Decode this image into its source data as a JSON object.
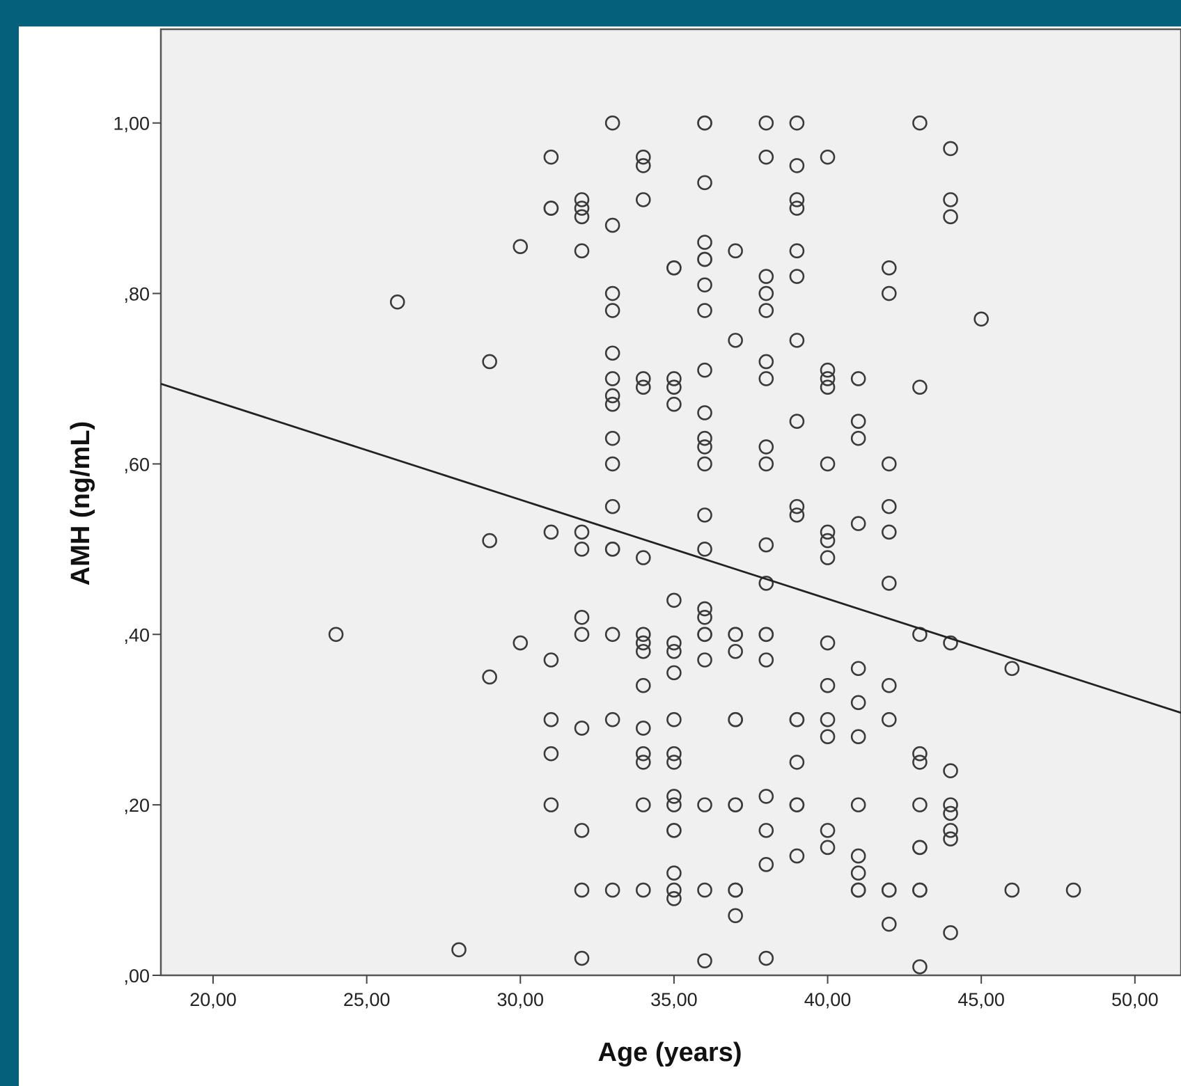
{
  "chart_data": {
    "type": "scatter",
    "title": "",
    "xlabel": "Age (years)",
    "ylabel": "AMH (ng/mL)",
    "xlim": [
      18.3,
      51.5
    ],
    "ylim": [
      0,
      1.11
    ],
    "x_ticks": [
      {
        "value": 20,
        "label": "20,00"
      },
      {
        "value": 25,
        "label": "25,00"
      },
      {
        "value": 30,
        "label": "30,00"
      },
      {
        "value": 35,
        "label": "35,00"
      },
      {
        "value": 40,
        "label": "40,00"
      },
      {
        "value": 45,
        "label": "45,00"
      },
      {
        "value": 50,
        "label": "50,00"
      }
    ],
    "y_ticks": [
      {
        "value": 0,
        "label": ",00"
      },
      {
        "value": 0.2,
        "label": ",20"
      },
      {
        "value": 0.4,
        "label": ",40"
      },
      {
        "value": 0.6,
        "label": ",60"
      },
      {
        "value": 0.8,
        "label": ",80"
      },
      {
        "value": 1.0,
        "label": "1,00"
      }
    ],
    "grid": false,
    "background_color": "#f0f0f0",
    "marker": "open-circle",
    "fit_line": {
      "type": "linear",
      "x": [
        18.3,
        51.5
      ],
      "y": [
        0.694,
        0.308
      ]
    },
    "points": [
      [
        24,
        0.4
      ],
      [
        26,
        0.79
      ],
      [
        28,
        0.03
      ],
      [
        29,
        0.72
      ],
      [
        29,
        0.51
      ],
      [
        29,
        0.35
      ],
      [
        30,
        0.855
      ],
      [
        30,
        0.39
      ],
      [
        31,
        0.96
      ],
      [
        31,
        0.9
      ],
      [
        31,
        0.9
      ],
      [
        31,
        0.52
      ],
      [
        31,
        0.37
      ],
      [
        31,
        0.3
      ],
      [
        31,
        0.26
      ],
      [
        31,
        0.2
      ],
      [
        32,
        0.91
      ],
      [
        32,
        0.9
      ],
      [
        32,
        0.89
      ],
      [
        32,
        0.85
      ],
      [
        32,
        0.52
      ],
      [
        32,
        0.5
      ],
      [
        32,
        0.42
      ],
      [
        32,
        0.4
      ],
      [
        32,
        0.29
      ],
      [
        32,
        0.17
      ],
      [
        32,
        0.1
      ],
      [
        32,
        0.02
      ],
      [
        33,
        1.0
      ],
      [
        33,
        0.88
      ],
      [
        33,
        0.8
      ],
      [
        33,
        0.78
      ],
      [
        33,
        0.73
      ],
      [
        33,
        0.7
      ],
      [
        33,
        0.68
      ],
      [
        33,
        0.67
      ],
      [
        33,
        0.63
      ],
      [
        33,
        0.6
      ],
      [
        33,
        0.55
      ],
      [
        33,
        0.5
      ],
      [
        33,
        0.5
      ],
      [
        33,
        0.4
      ],
      [
        33,
        0.3
      ],
      [
        33,
        0.1
      ],
      [
        34,
        0.96
      ],
      [
        34,
        0.95
      ],
      [
        34,
        0.91
      ],
      [
        34,
        0.7
      ],
      [
        34,
        0.69
      ],
      [
        34,
        0.49
      ],
      [
        34,
        0.4
      ],
      [
        34,
        0.39
      ],
      [
        34,
        0.38
      ],
      [
        34,
        0.34
      ],
      [
        34,
        0.29
      ],
      [
        34,
        0.26
      ],
      [
        34,
        0.25
      ],
      [
        34,
        0.2
      ],
      [
        34,
        0.1
      ],
      [
        35,
        0.83
      ],
      [
        35,
        0.83
      ],
      [
        35,
        0.7
      ],
      [
        35,
        0.69
      ],
      [
        35,
        0.67
      ],
      [
        35,
        0.44
      ],
      [
        35,
        0.39
      ],
      [
        35,
        0.38
      ],
      [
        35,
        0.355
      ],
      [
        35,
        0.3
      ],
      [
        35,
        0.26
      ],
      [
        35,
        0.25
      ],
      [
        35,
        0.21
      ],
      [
        35,
        0.2
      ],
      [
        35,
        0.17
      ],
      [
        35,
        0.17
      ],
      [
        35,
        0.12
      ],
      [
        35,
        0.1
      ],
      [
        35,
        0.09
      ],
      [
        36,
        1.0
      ],
      [
        36,
        1.0
      ],
      [
        36,
        0.93
      ],
      [
        36,
        0.86
      ],
      [
        36,
        0.84
      ],
      [
        36,
        0.84
      ],
      [
        36,
        0.81
      ],
      [
        36,
        0.78
      ],
      [
        36,
        0.71
      ],
      [
        36,
        0.66
      ],
      [
        36,
        0.63
      ],
      [
        36,
        0.62
      ],
      [
        36,
        0.6
      ],
      [
        36,
        0.54
      ],
      [
        36,
        0.5
      ],
      [
        36,
        0.43
      ],
      [
        36,
        0.42
      ],
      [
        36,
        0.4
      ],
      [
        36,
        0.4
      ],
      [
        36,
        0.37
      ],
      [
        36,
        0.2
      ],
      [
        36,
        0.1
      ],
      [
        36,
        0.017
      ],
      [
        37,
        0.85
      ],
      [
        37,
        0.745
      ],
      [
        37,
        0.4
      ],
      [
        37,
        0.4
      ],
      [
        37,
        0.38
      ],
      [
        37,
        0.3
      ],
      [
        37,
        0.3
      ],
      [
        37,
        0.2
      ],
      [
        37,
        0.2
      ],
      [
        37,
        0.1
      ],
      [
        37,
        0.1
      ],
      [
        37,
        0.07
      ],
      [
        38,
        1.0
      ],
      [
        38,
        0.96
      ],
      [
        38,
        0.82
      ],
      [
        38,
        0.8
      ],
      [
        38,
        0.78
      ],
      [
        38,
        0.72
      ],
      [
        38,
        0.7
      ],
      [
        38,
        0.62
      ],
      [
        38,
        0.6
      ],
      [
        38,
        0.505
      ],
      [
        38,
        0.46
      ],
      [
        38,
        0.4
      ],
      [
        38,
        0.4
      ],
      [
        38,
        0.37
      ],
      [
        38,
        0.21
      ],
      [
        38,
        0.17
      ],
      [
        38,
        0.13
      ],
      [
        38,
        0.02
      ],
      [
        39,
        1.0
      ],
      [
        39,
        0.95
      ],
      [
        39,
        0.91
      ],
      [
        39,
        0.9
      ],
      [
        39,
        0.85
      ],
      [
        39,
        0.82
      ],
      [
        39,
        0.745
      ],
      [
        39,
        0.65
      ],
      [
        39,
        0.55
      ],
      [
        39,
        0.54
      ],
      [
        39,
        0.3
      ],
      [
        39,
        0.3
      ],
      [
        39,
        0.25
      ],
      [
        39,
        0.2
      ],
      [
        39,
        0.2
      ],
      [
        39,
        0.14
      ],
      [
        40,
        0.96
      ],
      [
        40,
        0.71
      ],
      [
        40,
        0.7
      ],
      [
        40,
        0.69
      ],
      [
        40,
        0.6
      ],
      [
        40,
        0.52
      ],
      [
        40,
        0.51
      ],
      [
        40,
        0.49
      ],
      [
        40,
        0.39
      ],
      [
        40,
        0.34
      ],
      [
        40,
        0.3
      ],
      [
        40,
        0.28
      ],
      [
        40,
        0.17
      ],
      [
        40,
        0.15
      ],
      [
        41,
        0.7
      ],
      [
        41,
        0.65
      ],
      [
        41,
        0.63
      ],
      [
        41,
        0.53
      ],
      [
        41,
        0.36
      ],
      [
        41,
        0.32
      ],
      [
        41,
        0.28
      ],
      [
        41,
        0.2
      ],
      [
        41,
        0.14
      ],
      [
        41,
        0.12
      ],
      [
        41,
        0.1
      ],
      [
        41,
        0.1
      ],
      [
        42,
        0.83
      ],
      [
        42,
        0.8
      ],
      [
        42,
        0.6
      ],
      [
        42,
        0.55
      ],
      [
        42,
        0.52
      ],
      [
        42,
        0.46
      ],
      [
        42,
        0.34
      ],
      [
        42,
        0.3
      ],
      [
        42,
        0.1
      ],
      [
        42,
        0.1
      ],
      [
        42,
        0.06
      ],
      [
        43,
        1.0
      ],
      [
        43,
        0.69
      ],
      [
        43,
        0.4
      ],
      [
        43,
        0.26
      ],
      [
        43,
        0.25
      ],
      [
        43,
        0.2
      ],
      [
        43,
        0.15
      ],
      [
        43,
        0.15
      ],
      [
        43,
        0.1
      ],
      [
        43,
        0.1
      ],
      [
        43,
        0.01
      ],
      [
        44,
        0.97
      ],
      [
        44,
        0.91
      ],
      [
        44,
        0.89
      ],
      [
        44,
        0.39
      ],
      [
        44,
        0.24
      ],
      [
        44,
        0.2
      ],
      [
        44,
        0.19
      ],
      [
        44,
        0.17
      ],
      [
        44,
        0.16
      ],
      [
        44,
        0.05
      ],
      [
        45,
        0.77
      ],
      [
        46,
        0.36
      ],
      [
        46,
        0.1
      ],
      [
        48,
        0.1
      ]
    ]
  }
}
